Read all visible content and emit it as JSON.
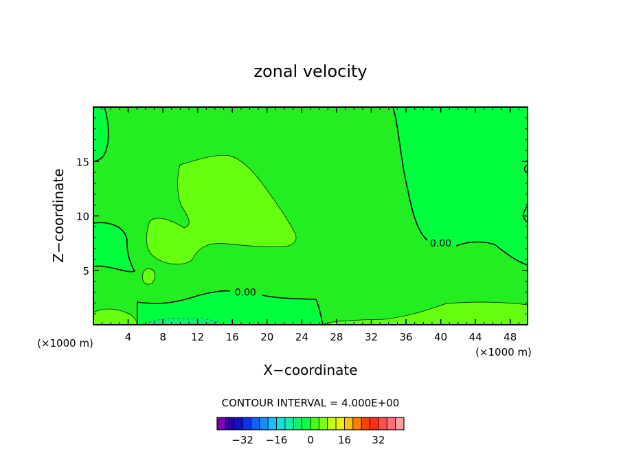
{
  "chart_data": {
    "type": "contour",
    "title": "zonal velocity",
    "xlabel": "X−coordinate",
    "ylabel": "Z−coordinate",
    "x_unit_left": "(×1000 m)",
    "x_unit_right": "(×1000 m)",
    "xlim": [
      0,
      50
    ],
    "ylim": [
      0,
      20
    ],
    "x_ticks": [
      4,
      8,
      12,
      16,
      20,
      24,
      28,
      32,
      36,
      40,
      44,
      48
    ],
    "y_ticks": [
      5,
      10,
      15
    ],
    "contour_labels": [
      {
        "text": "0.00",
        "x": 17.5,
        "y": 3.0
      },
      {
        "text": "0.00",
        "x": 40.0,
        "y": 7.5
      }
    ],
    "contour_interval_text": "CONTOUR INTERVAL = 4.000E+00",
    "colorbar": {
      "colors": [
        "#7a00b0",
        "#2a00a0",
        "#1010cc",
        "#1030ee",
        "#1060ff",
        "#1090ff",
        "#10c0ff",
        "#10e0e0",
        "#10f0b0",
        "#10f070",
        "#10ff40",
        "#40ff10",
        "#80ff10",
        "#c0ff10",
        "#f0f010",
        "#ffc010",
        "#ff8000",
        "#ff4000",
        "#ff3010",
        "#ff5050",
        "#ff7070",
        "#ffa0a0"
      ],
      "tick_labels": [
        "−32",
        "−16",
        "0",
        "16",
        "32"
      ]
    }
  }
}
